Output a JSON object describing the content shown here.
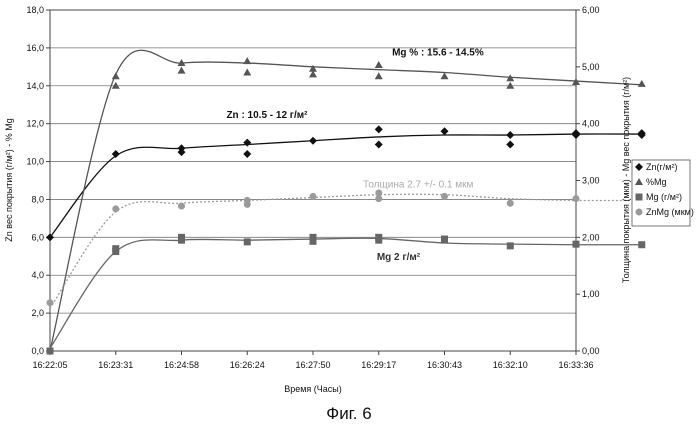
{
  "chart_data": {
    "type": "line",
    "x_ticks": [
      "16:22:05",
      "16:23:31",
      "16:24:58",
      "16:26:24",
      "16:27:50",
      "16:29:17",
      "16:30:43",
      "16:32:10",
      "16:33:36"
    ],
    "xlabel": "Время (Часы)",
    "ylabel_left": "Zn вес покрытия (г/м²) - % Mg",
    "ylabel_right": "Толщина покрытия (мкм) - Mg вес покрытия (г/м²)",
    "ylim_left": [
      0,
      18
    ],
    "ylim_right": [
      0,
      6
    ],
    "y_ticks_left": [
      "0,0",
      "2,0",
      "4,0",
      "6,0",
      "8,0",
      "10,0",
      "12,0",
      "14,0",
      "16,0",
      "18,0"
    ],
    "y_ticks_right": [
      "0,00",
      "1,00",
      "2,00",
      "3,00",
      "4,00",
      "5,00",
      "6,00"
    ],
    "grid": true,
    "legend_position": "right",
    "series": [
      {
        "name": "Zn(г/м²)",
        "axis": "left",
        "marker": "diamond",
        "color": "#111111",
        "x": [
          1.0,
          2.0,
          3.0,
          3.0,
          4.0,
          4.0,
          5.0,
          6.0,
          6.0,
          7.0,
          8.0,
          8.0,
          9.0,
          9.0,
          10.0,
          10.0
        ],
        "y": [
          6.0,
          10.4,
          10.5,
          10.7,
          10.4,
          11.0,
          11.1,
          11.7,
          10.9,
          11.6,
          11.4,
          10.9,
          11.5,
          11.4,
          11.5,
          11.4
        ],
        "fit": [
          6.0,
          10.3,
          10.7,
          10.9,
          11.1,
          11.3,
          11.4,
          11.4,
          11.45,
          11.45
        ]
      },
      {
        "name": "%Mg",
        "axis": "left",
        "marker": "triangle",
        "color": "#555555",
        "x": [
          2.0,
          2.0,
          3.0,
          3.0,
          4.0,
          4.0,
          5.0,
          5.0,
          6.0,
          6.0,
          7.0,
          8.0,
          8.0,
          9.0,
          10.0
        ],
        "y": [
          14.5,
          14.0,
          15.2,
          14.8,
          15.3,
          14.7,
          14.9,
          14.6,
          15.1,
          14.5,
          14.5,
          14.4,
          14.0,
          14.2,
          14.1
        ],
        "fit": [
          0.0,
          14.6,
          15.2,
          15.2,
          15.0,
          14.85,
          14.7,
          14.45,
          14.25,
          14.05
        ]
      },
      {
        "name": "Mg (г/м²)",
        "axis": "right",
        "marker": "square",
        "color": "#666666",
        "x": [
          1.0,
          2.0,
          2.0,
          3.0,
          3.0,
          4.0,
          5.0,
          5.0,
          6.0,
          6.0,
          7.0,
          8.0,
          9.0,
          10.0
        ],
        "y": [
          0.0,
          1.8,
          1.75,
          1.95,
          2.0,
          1.92,
          1.93,
          2.0,
          2.0,
          1.95,
          1.97,
          1.85,
          1.88,
          1.87
        ],
        "fit": [
          0.05,
          1.75,
          1.95,
          1.95,
          1.97,
          1.98,
          1.9,
          1.88,
          1.87,
          1.87
        ]
      },
      {
        "name": "ZnMg (мкм)",
        "axis": "right",
        "marker": "circle",
        "color": "#9a9a9a",
        "x": [
          1.0,
          2.0,
          3.0,
          4.0,
          4.0,
          5.0,
          6.0,
          6.0,
          7.0,
          8.0,
          9.0,
          10.0
        ],
        "y": [
          0.85,
          2.5,
          2.55,
          2.65,
          2.58,
          2.72,
          2.78,
          2.68,
          2.72,
          2.6,
          2.68,
          2.65
        ],
        "fit": [
          0.75,
          2.45,
          2.6,
          2.65,
          2.7,
          2.75,
          2.75,
          2.68,
          2.65,
          2.65
        ]
      }
    ],
    "annotations": [
      {
        "text": "Mg % : 15.6 - 14.5%",
        "x": 6.9,
        "y": 15.6,
        "axis": "left",
        "color": "#111111",
        "bold": true
      },
      {
        "text": "Zn : 10.5 - 12 г/м²",
        "x": 4.3,
        "y": 12.3,
        "axis": "left",
        "color": "#111111",
        "bold": true
      },
      {
        "text": "Толщина 2.7 +/- 0.1 мкм",
        "x": 6.6,
        "y": 2.88,
        "axis": "right",
        "color": "#aaaaaa",
        "bold": false
      },
      {
        "text": "Mg 2 г/м²",
        "x": 6.3,
        "y": 1.6,
        "axis": "right",
        "color": "#333333",
        "bold": true
      }
    ]
  },
  "caption": "Фиг. 6"
}
